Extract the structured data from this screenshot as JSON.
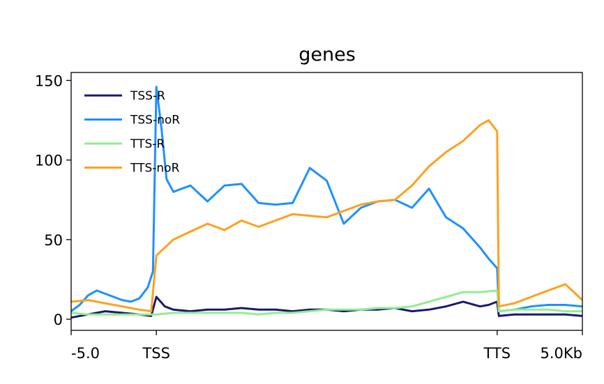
{
  "chart_data": {
    "type": "line",
    "title": "genes",
    "xlabel": "",
    "ylabel": "",
    "x_ticks": [
      {
        "pos": -5.0,
        "label": "-5.0"
      },
      {
        "pos": 0,
        "label": "TSS"
      },
      {
        "pos": 20,
        "label": "TTS"
      },
      {
        "pos": 25,
        "label": "5.0Kb"
      }
    ],
    "x_range": [
      -5.0,
      25.0
    ],
    "y_ticks": [
      0,
      50,
      100,
      150
    ],
    "ylim": [
      -7,
      155
    ],
    "legend_position": "upper-left",
    "grid": false,
    "series": [
      {
        "name": "TSS-R",
        "color": "#191970",
        "points": [
          [
            -5.0,
            1
          ],
          [
            -4.0,
            3
          ],
          [
            -3.0,
            5
          ],
          [
            -2.0,
            4
          ],
          [
            -1.0,
            3
          ],
          [
            -0.3,
            2
          ],
          [
            0.0,
            14
          ],
          [
            0.5,
            8
          ],
          [
            1,
            6
          ],
          [
            2,
            5
          ],
          [
            3,
            6
          ],
          [
            4,
            6
          ],
          [
            5,
            7
          ],
          [
            6,
            6
          ],
          [
            7,
            6
          ],
          [
            8,
            5
          ],
          [
            9,
            6
          ],
          [
            10,
            6
          ],
          [
            11,
            5
          ],
          [
            12,
            6
          ],
          [
            13,
            6
          ],
          [
            14,
            7
          ],
          [
            15,
            5
          ],
          [
            16,
            6
          ],
          [
            17,
            8
          ],
          [
            18,
            11
          ],
          [
            19,
            8
          ],
          [
            19.5,
            9
          ],
          [
            20,
            11
          ],
          [
            20.1,
            2
          ],
          [
            21,
            3
          ],
          [
            22,
            3
          ],
          [
            23,
            3
          ],
          [
            24,
            3
          ],
          [
            25,
            2
          ]
        ]
      },
      {
        "name": "TSS-noR",
        "color": "#1E90FF",
        "points": [
          [
            -5.0,
            5
          ],
          [
            -4.5,
            9
          ],
          [
            -4.0,
            15
          ],
          [
            -3.5,
            18
          ],
          [
            -3.0,
            16
          ],
          [
            -2.5,
            14
          ],
          [
            -2.0,
            12
          ],
          [
            -1.5,
            11
          ],
          [
            -1.0,
            13
          ],
          [
            -0.5,
            20
          ],
          [
            -0.2,
            30
          ],
          [
            0.0,
            146
          ],
          [
            0.3,
            120
          ],
          [
            0.6,
            88
          ],
          [
            1.0,
            80
          ],
          [
            2,
            84
          ],
          [
            3,
            74
          ],
          [
            4,
            84
          ],
          [
            5,
            85
          ],
          [
            6,
            73
          ],
          [
            7,
            72
          ],
          [
            8,
            73
          ],
          [
            9,
            95
          ],
          [
            10,
            87
          ],
          [
            11,
            60
          ],
          [
            12,
            70
          ],
          [
            13,
            74
          ],
          [
            14,
            75
          ],
          [
            15,
            70
          ],
          [
            16,
            82
          ],
          [
            17,
            64
          ],
          [
            18,
            57
          ],
          [
            19,
            45
          ],
          [
            19.5,
            38
          ],
          [
            20,
            32
          ],
          [
            20.1,
            5
          ],
          [
            21,
            6
          ],
          [
            22,
            8
          ],
          [
            23,
            9
          ],
          [
            24,
            9
          ],
          [
            25,
            8
          ]
        ]
      },
      {
        "name": "TTS-R",
        "color": "#90EE90",
        "points": [
          [
            -5.0,
            4
          ],
          [
            -4.0,
            3
          ],
          [
            -3.0,
            3
          ],
          [
            -2.0,
            3
          ],
          [
            -1.0,
            3
          ],
          [
            0.0,
            3
          ],
          [
            1,
            4
          ],
          [
            2,
            4
          ],
          [
            3,
            4
          ],
          [
            4,
            4
          ],
          [
            5,
            4
          ],
          [
            6,
            3
          ],
          [
            7,
            4
          ],
          [
            8,
            4
          ],
          [
            9,
            5
          ],
          [
            10,
            6
          ],
          [
            11,
            6
          ],
          [
            12,
            6
          ],
          [
            13,
            7
          ],
          [
            14,
            7
          ],
          [
            15,
            8
          ],
          [
            16,
            11
          ],
          [
            17,
            14
          ],
          [
            18,
            17
          ],
          [
            19,
            17
          ],
          [
            20,
            18
          ],
          [
            20.1,
            5
          ],
          [
            21,
            6
          ],
          [
            22,
            6
          ],
          [
            23,
            6
          ],
          [
            24,
            5
          ],
          [
            25,
            5
          ]
        ]
      },
      {
        "name": "TTS-noR",
        "color": "#FFA01E",
        "points": [
          [
            -5.0,
            11
          ],
          [
            -4.0,
            12
          ],
          [
            -3.0,
            10
          ],
          [
            -2.0,
            8
          ],
          [
            -1.0,
            6
          ],
          [
            -0.3,
            5
          ],
          [
            0.0,
            40
          ],
          [
            0.5,
            45
          ],
          [
            1,
            50
          ],
          [
            2,
            55
          ],
          [
            3,
            60
          ],
          [
            4,
            56
          ],
          [
            5,
            62
          ],
          [
            6,
            58
          ],
          [
            7,
            62
          ],
          [
            8,
            66
          ],
          [
            9,
            65
          ],
          [
            10,
            64
          ],
          [
            11,
            68
          ],
          [
            12,
            72
          ],
          [
            13,
            74
          ],
          [
            14,
            75
          ],
          [
            15,
            84
          ],
          [
            16,
            96
          ],
          [
            17,
            105
          ],
          [
            18,
            112
          ],
          [
            19,
            122
          ],
          [
            19.5,
            125
          ],
          [
            20,
            118
          ],
          [
            20.1,
            8
          ],
          [
            21,
            10
          ],
          [
            22,
            14
          ],
          [
            23,
            18
          ],
          [
            24,
            22
          ],
          [
            25,
            12
          ]
        ]
      }
    ]
  }
}
